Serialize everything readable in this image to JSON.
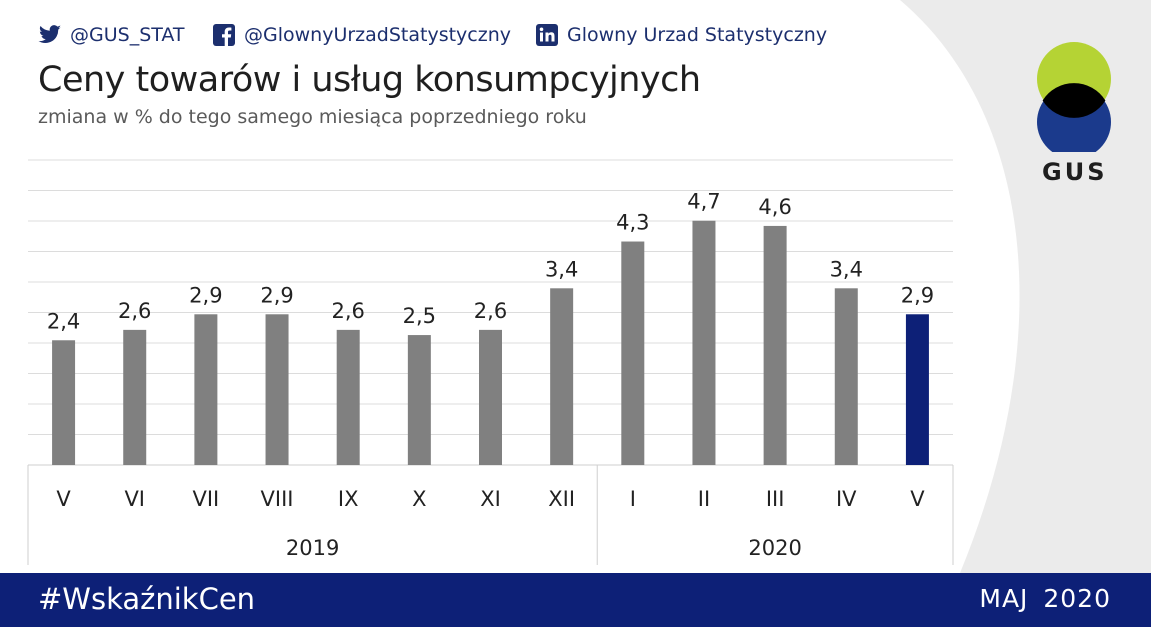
{
  "social": {
    "twitter": "@GUS_STAT",
    "facebook": "@GlownyUrzadStatystyczny",
    "linkedin": "Glowny Urzad Statystyczny"
  },
  "title": "Ceny towarów i usług konsumpcyjnych",
  "subtitle": "zmiana w % do tego samego miesiąca poprzedniego roku",
  "logo": {
    "text": "GUS",
    "colors": [
      "#b5d334",
      "#1b3a8c",
      "#000000"
    ]
  },
  "footer": {
    "hashtag": "#WskaźnikCen",
    "date": "MAJ  2020"
  },
  "colors": {
    "bar": "#808080",
    "highlight": "#0d2077",
    "footer": "#0d2077"
  },
  "chart_data": {
    "type": "bar",
    "categories": [
      "V",
      "VI",
      "VII",
      "VIII",
      "IX",
      "X",
      "XI",
      "XII",
      "I",
      "II",
      "III",
      "IV",
      "V"
    ],
    "groups": [
      {
        "label": "2019",
        "from": 0,
        "to": 7
      },
      {
        "label": "2020",
        "from": 8,
        "to": 12
      }
    ],
    "values": [
      2.4,
      2.6,
      2.9,
      2.9,
      2.6,
      2.5,
      2.6,
      3.4,
      4.3,
      4.7,
      4.6,
      3.4,
      2.9
    ],
    "value_labels": [
      "2,4",
      "2,6",
      "2,9",
      "2,9",
      "2,6",
      "2,5",
      "2,6",
      "3,4",
      "4,3",
      "4,7",
      "4,6",
      "3,4",
      "2,9"
    ],
    "highlight_index": 12,
    "ylim": [
      0,
      5
    ],
    "grid": true,
    "title": "Ceny towarów i usług konsumpcyjnych",
    "xlabel": "",
    "ylabel": ""
  }
}
